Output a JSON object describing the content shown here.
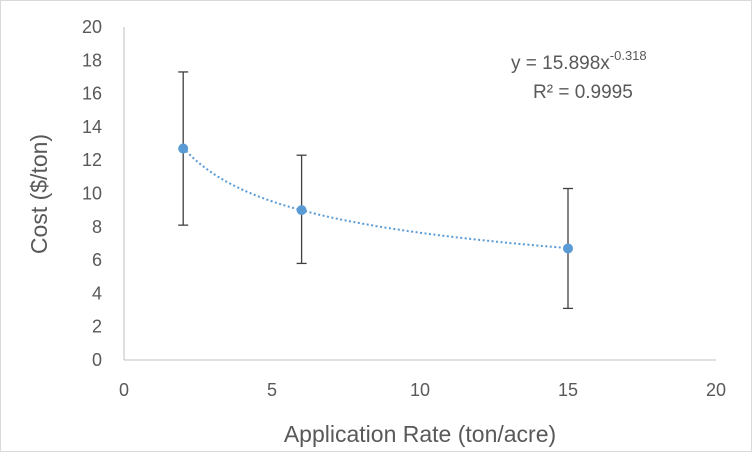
{
  "chart_data": {
    "type": "scatter",
    "title": "",
    "xlabel": "Application Rate (ton/acre)",
    "ylabel": "Cost ($/ton)",
    "xlim": [
      0,
      20
    ],
    "ylim": [
      0,
      20
    ],
    "xticks": [
      "0",
      "5",
      "10",
      "15",
      "20"
    ],
    "yticks": [
      "0",
      "2",
      "4",
      "6",
      "8",
      "10",
      "12",
      "14",
      "16",
      "18",
      "20"
    ],
    "grid": false,
    "legend": "none",
    "points": [
      {
        "x": 2,
        "y": 12.7,
        "err_low": 8.1,
        "err_high": 17.3
      },
      {
        "x": 6,
        "y": 9.0,
        "err_low": 5.8,
        "err_high": 12.3
      },
      {
        "x": 15,
        "y": 6.7,
        "err_low": 3.1,
        "err_high": 10.3
      }
    ],
    "trendline": {
      "type": "power",
      "a": 15.898,
      "b": -0.318,
      "equation_base": "y = 15.898x",
      "equation_exponent": "-0.318",
      "r_squared_label": "R² = 0.9995"
    },
    "colors": {
      "marker": "#5b9bd5",
      "trendline": "#5b9bd5",
      "error_bar": "#404040",
      "axis": "#bfbfbf",
      "text": "#595959"
    }
  }
}
